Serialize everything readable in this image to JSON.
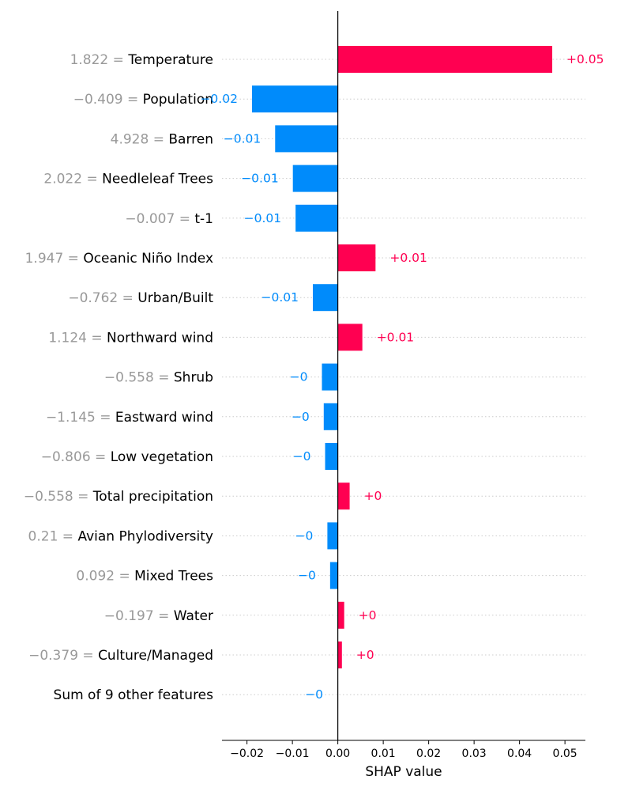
{
  "chart_data": {
    "type": "bar",
    "orientation": "horizontal",
    "xlabel": "SHAP value",
    "xlim": [
      -0.0255,
      0.0545
    ],
    "xticks": [
      {
        "value": -0.02,
        "label": "−0.02"
      },
      {
        "value": -0.01,
        "label": "−0.01"
      },
      {
        "value": 0.0,
        "label": "0.00"
      },
      {
        "value": 0.01,
        "label": "0.01"
      },
      {
        "value": 0.02,
        "label": "0.02"
      },
      {
        "value": 0.03,
        "label": "0.03"
      },
      {
        "value": 0.04,
        "label": "0.04"
      },
      {
        "value": 0.05,
        "label": "0.05"
      }
    ],
    "grid": "dotted horizontal row guides",
    "colors": {
      "positive": "#ff0051",
      "negative": "#008bfb",
      "neutral": "#cccccc"
    },
    "bars": [
      {
        "feature_value": "1.822",
        "feature": "Temperature",
        "shap": 0.0472,
        "label": "+0.05"
      },
      {
        "feature_value": "−0.409",
        "feature": "Population",
        "shap": -0.0189,
        "label": "−0.02"
      },
      {
        "feature_value": "4.928",
        "feature": "Barren",
        "shap": -0.0138,
        "label": "−0.01"
      },
      {
        "feature_value": "2.022",
        "feature": "Needleleaf Trees",
        "shap": -0.0099,
        "label": "−0.01"
      },
      {
        "feature_value": "−0.007",
        "feature": "t-1",
        "shap": -0.0093,
        "label": "−0.01"
      },
      {
        "feature_value": "1.947",
        "feature": "Oceanic Niño Index",
        "shap": 0.0083,
        "label": "+0.01"
      },
      {
        "feature_value": "−0.762",
        "feature": "Urban/Built",
        "shap": -0.0055,
        "label": "−0.01"
      },
      {
        "feature_value": "1.124",
        "feature": "Northward wind",
        "shap": 0.0054,
        "label": "+0.01"
      },
      {
        "feature_value": "−0.558",
        "feature": "Shrub",
        "shap": -0.0035,
        "label": "−0"
      },
      {
        "feature_value": "−1.145",
        "feature": "Eastward wind",
        "shap": -0.0031,
        "label": "−0"
      },
      {
        "feature_value": "−0.806",
        "feature": "Low vegetation",
        "shap": -0.0028,
        "label": "−0"
      },
      {
        "feature_value": "−0.558",
        "feature": "Total precipitation",
        "shap": 0.0026,
        "label": "+0"
      },
      {
        "feature_value": "0.21",
        "feature": "Avian Phylodiversity",
        "shap": -0.0023,
        "label": "−0"
      },
      {
        "feature_value": "0.092",
        "feature": "Mixed Trees",
        "shap": -0.0017,
        "label": "−0"
      },
      {
        "feature_value": "−0.197",
        "feature": "Water",
        "shap": 0.0014,
        "label": "+0"
      },
      {
        "feature_value": "−0.379",
        "feature": "Culture/Managed",
        "shap": 0.0009,
        "label": "+0"
      },
      {
        "feature_value": "",
        "feature": "Sum of 9 other features",
        "shap": -0.0001,
        "label": "−0"
      }
    ]
  }
}
